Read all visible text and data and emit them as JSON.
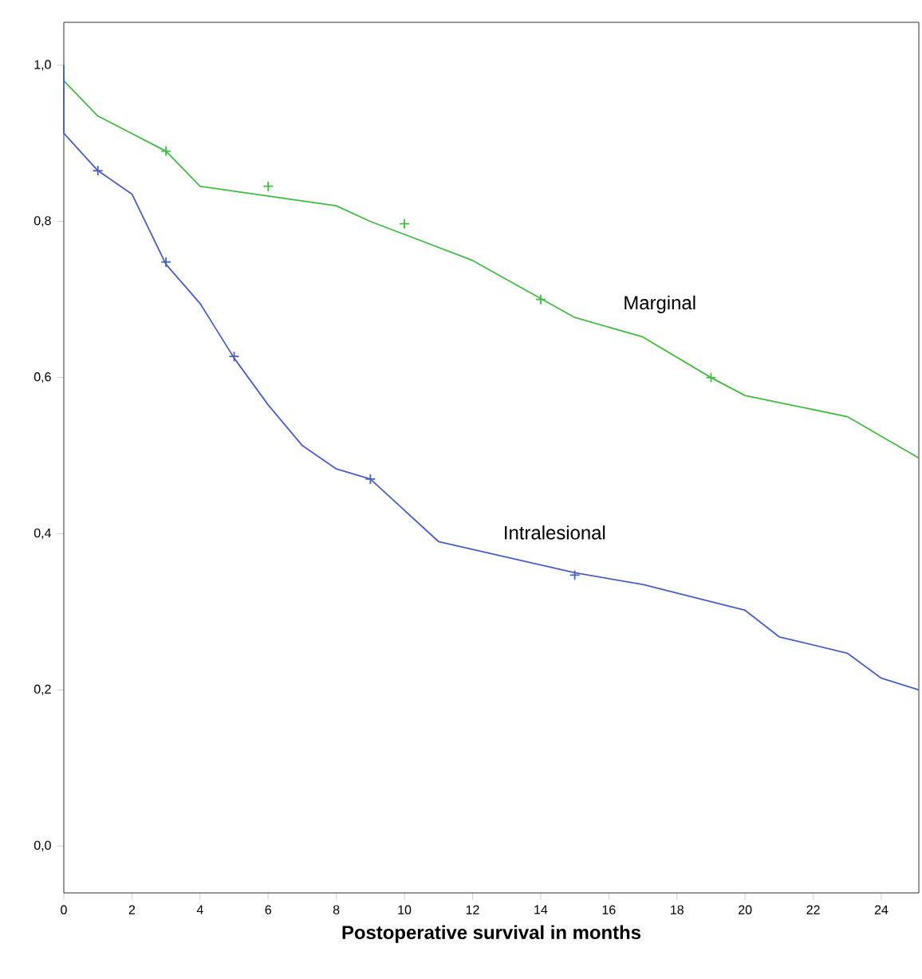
{
  "chart_data": {
    "type": "line",
    "xlabel": "Postoperative survival in months",
    "xlim": [
      0,
      25.1
    ],
    "ylim": [
      -0.06,
      1.055
    ],
    "xticks": [
      0,
      2,
      4,
      6,
      8,
      10,
      12,
      14,
      16,
      18,
      20,
      22,
      24
    ],
    "yticks": [
      {
        "value": 0,
        "label": "0,0"
      },
      {
        "value": 0.2,
        "label": "0,2"
      },
      {
        "value": 0.4,
        "label": "0,4"
      },
      {
        "value": 0.6,
        "label": "0,6"
      },
      {
        "value": 0.8,
        "label": "0,8"
      },
      {
        "value": 1.0,
        "label": "1,0"
      }
    ],
    "grid": false,
    "line_style": "solid",
    "series": [
      {
        "name": "Marginal",
        "color": "#44bb44",
        "x": [
          0,
          0,
          1,
          3,
          4,
          8,
          9,
          12,
          15,
          17,
          19,
          20,
          23,
          25.1
        ],
        "values": [
          1.0,
          0.98,
          0.935,
          0.89,
          0.845,
          0.82,
          0.8,
          0.75,
          0.677,
          0.652,
          0.6,
          0.577,
          0.55,
          0.497
        ]
      },
      {
        "name": "Intralesional",
        "color": "#4a5fc1",
        "x": [
          0,
          0,
          1,
          2,
          3,
          4,
          5,
          6,
          7,
          8,
          9,
          10,
          11,
          15,
          17,
          20,
          21,
          23,
          24,
          25.1
        ],
        "values": [
          1.0,
          0.913,
          0.865,
          0.835,
          0.745,
          0.695,
          0.625,
          0.565,
          0.513,
          0.483,
          0.47,
          0.43,
          0.39,
          0.35,
          0.335,
          0.302,
          0.268,
          0.247,
          0.215,
          0.2
        ]
      },
      {
        "type": "scatter",
        "marker": "cross",
        "color": "#44bb44",
        "x": [
          3,
          6,
          10,
          14,
          19
        ],
        "values": [
          0.89,
          0.845,
          0.797,
          0.7,
          0.6
        ]
      },
      {
        "type": "scatter",
        "marker": "cross",
        "color": "#4a5fc1",
        "x": [
          1,
          3,
          5,
          9,
          15
        ],
        "values": [
          0.865,
          0.748,
          0.627,
          0.47,
          0.347
        ]
      }
    ]
  }
}
